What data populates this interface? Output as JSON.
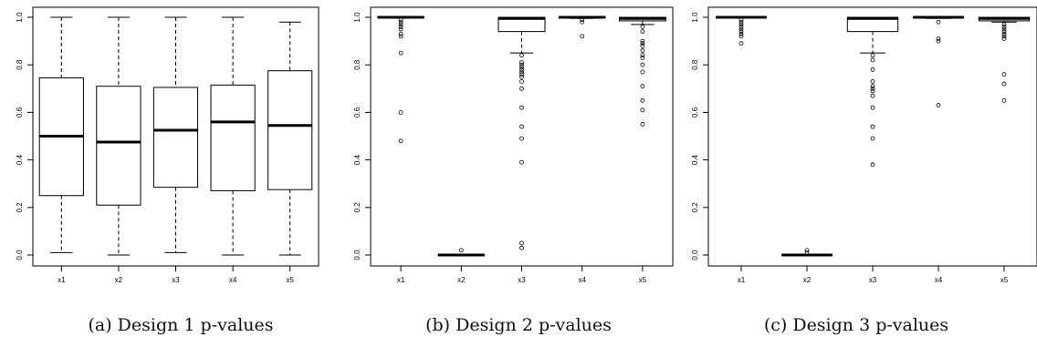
{
  "chart_data": [
    {
      "type": "boxplot",
      "caption": "(a) Design 1 p-values",
      "categories": [
        "x1",
        "x2",
        "x3",
        "x4",
        "x5"
      ],
      "yticks": [
        "0.0",
        "0.2",
        "0.4",
        "0.6",
        "0.8",
        "1.0"
      ],
      "ylim": [
        0,
        1
      ],
      "boxes": [
        {
          "whisker_low": 0.01,
          "q1": 0.25,
          "median": 0.5,
          "q3": 0.745,
          "whisker_high": 1.0,
          "outliers": []
        },
        {
          "whisker_low": 0.0,
          "q1": 0.21,
          "median": 0.475,
          "q3": 0.71,
          "whisker_high": 1.0,
          "outliers": []
        },
        {
          "whisker_low": 0.01,
          "q1": 0.285,
          "median": 0.525,
          "q3": 0.705,
          "whisker_high": 1.0,
          "outliers": []
        },
        {
          "whisker_low": 0.0,
          "q1": 0.27,
          "median": 0.56,
          "q3": 0.715,
          "whisker_high": 1.0,
          "outliers": []
        },
        {
          "whisker_low": 0.0,
          "q1": 0.275,
          "median": 0.545,
          "q3": 0.775,
          "whisker_high": 0.98,
          "outliers": []
        }
      ]
    },
    {
      "type": "boxplot",
      "caption": "(b) Design 2 p-values",
      "categories": [
        "x1",
        "x2",
        "x3",
        "x4",
        "x5"
      ],
      "yticks": [
        "0.0",
        "0.2",
        "0.4",
        "0.6",
        "0.8",
        "1.0"
      ],
      "ylim": [
        0,
        1
      ],
      "boxes": [
        {
          "whisker_low": 1.0,
          "q1": 1.0,
          "median": 1.0,
          "q3": 1.0,
          "whisker_high": 1.0,
          "outliers": [
            0.99,
            0.98,
            0.97,
            0.96,
            0.95,
            0.93,
            0.92,
            0.85,
            0.6,
            0.48
          ]
        },
        {
          "whisker_low": 0.0,
          "q1": 0.0,
          "median": 0.0,
          "q3": 0.0,
          "whisker_high": 0.0,
          "outliers": [
            0.02
          ]
        },
        {
          "whisker_low": 0.85,
          "q1": 0.94,
          "median": 0.995,
          "q3": 1.0,
          "whisker_high": 1.0,
          "outliers": [
            0.84,
            0.81,
            0.8,
            0.79,
            0.78,
            0.77,
            0.76,
            0.75,
            0.73,
            0.7,
            0.62,
            0.54,
            0.49,
            0.39,
            0.05,
            0.03
          ]
        },
        {
          "whisker_low": 0.995,
          "q1": 0.998,
          "median": 1.0,
          "q3": 1.0,
          "whisker_high": 1.0,
          "outliers": [
            0.99,
            0.98,
            0.92
          ]
        },
        {
          "whisker_low": 0.97,
          "q1": 0.985,
          "median": 0.995,
          "q3": 1.0,
          "whisker_high": 1.0,
          "outliers": [
            0.96,
            0.94,
            0.9,
            0.89,
            0.88,
            0.86,
            0.84,
            0.83,
            0.8,
            0.77,
            0.71,
            0.65,
            0.61,
            0.55
          ]
        }
      ]
    },
    {
      "type": "boxplot",
      "caption": "(c) Design 3 p-values",
      "categories": [
        "x1",
        "x2",
        "x3",
        "x4",
        "x5"
      ],
      "yticks": [
        "0.0",
        "0.2",
        "0.4",
        "0.6",
        "0.8",
        "1.0"
      ],
      "ylim": [
        0,
        1
      ],
      "boxes": [
        {
          "whisker_low": 1.0,
          "q1": 1.0,
          "median": 1.0,
          "q3": 1.0,
          "whisker_high": 1.0,
          "outliers": [
            0.99,
            0.98,
            0.97,
            0.96,
            0.95,
            0.94,
            0.93,
            0.92,
            0.89
          ]
        },
        {
          "whisker_low": 0.0,
          "q1": 0.0,
          "median": 0.0,
          "q3": 0.0,
          "whisker_high": 0.0,
          "outliers": [
            0.02,
            0.01
          ]
        },
        {
          "whisker_low": 0.85,
          "q1": 0.94,
          "median": 0.995,
          "q3": 1.0,
          "whisker_high": 1.0,
          "outliers": [
            0.84,
            0.82,
            0.78,
            0.73,
            0.71,
            0.7,
            0.69,
            0.67,
            0.62,
            0.54,
            0.49,
            0.38
          ]
        },
        {
          "whisker_low": 0.995,
          "q1": 0.998,
          "median": 1.0,
          "q3": 1.0,
          "whisker_high": 1.0,
          "outliers": [
            0.98,
            0.91,
            0.9,
            0.63
          ]
        },
        {
          "whisker_low": 0.98,
          "q1": 0.985,
          "median": 0.995,
          "q3": 1.0,
          "whisker_high": 1.0,
          "outliers": [
            0.97,
            0.96,
            0.95,
            0.94,
            0.93,
            0.92,
            0.91,
            0.76,
            0.72,
            0.65
          ]
        }
      ]
    }
  ]
}
